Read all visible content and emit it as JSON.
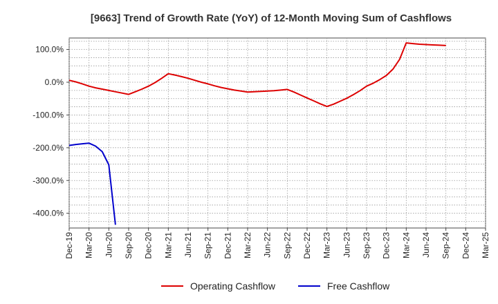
{
  "chart_data": {
    "type": "line",
    "title": "[9663]  Trend of Growth Rate (YoY) of 12-Month Moving Sum of Cashflows",
    "xlabel": "",
    "ylabel": "",
    "x_ticks": [
      "Dec-19",
      "Mar-20",
      "Jun-20",
      "Sep-20",
      "Dec-20",
      "Mar-21",
      "Jun-21",
      "Sep-21",
      "Dec-21",
      "Mar-22",
      "Jun-22",
      "Sep-22",
      "Dec-22",
      "Mar-23",
      "Jun-23",
      "Sep-23",
      "Dec-23",
      "Mar-24",
      "Jun-24",
      "Sep-24",
      "Dec-24",
      "Mar-25"
    ],
    "y_ticks": [
      100,
      0,
      -100,
      -200,
      -300,
      -400
    ],
    "y_tick_labels": [
      "100.0%",
      "0.0%",
      "-100.0%",
      "-200.0%",
      "-300.0%",
      "-400.0%"
    ],
    "ylim": [
      -445,
      135
    ],
    "grid": true,
    "legend_position": "bottom-center",
    "series": [
      {
        "name": "Operating Cashflow",
        "color": "#dd0000",
        "x": [
          "Dec-19",
          "Jan-20",
          "Feb-20",
          "Mar-20",
          "Apr-20",
          "May-20",
          "Jun-20",
          "Jul-20",
          "Aug-20",
          "Sep-20",
          "Oct-20",
          "Nov-20",
          "Dec-20",
          "Jan-21",
          "Feb-21",
          "Mar-21",
          "Apr-21",
          "May-21",
          "Jun-21",
          "Jul-21",
          "Aug-21",
          "Sep-21",
          "Oct-21",
          "Nov-21",
          "Dec-21",
          "Jan-22",
          "Feb-22",
          "Mar-22",
          "Apr-22",
          "May-22",
          "Jun-22",
          "Jul-22",
          "Aug-22",
          "Sep-22",
          "Oct-22",
          "Nov-22",
          "Dec-22",
          "Jan-23",
          "Feb-23",
          "Mar-23",
          "Apr-23",
          "May-23",
          "Jun-23",
          "Jul-23",
          "Aug-23",
          "Sep-23",
          "Oct-23",
          "Nov-23",
          "Dec-23",
          "Jan-24",
          "Feb-24",
          "Mar-24",
          "Apr-24",
          "May-24",
          "Jun-24",
          "Jul-24",
          "Aug-24",
          "Sep-24"
        ],
        "values": [
          6,
          1,
          -5,
          -12,
          -17,
          -21,
          -25,
          -29,
          -33,
          -37,
          -29,
          -21,
          -12,
          -1,
          12,
          26,
          22,
          17,
          12,
          6,
          0,
          -5,
          -11,
          -16,
          -20,
          -24,
          -27,
          -30,
          -29,
          -28,
          -27,
          -26,
          -24,
          -22,
          -30,
          -39,
          -48,
          -57,
          -66,
          -74,
          -67,
          -58,
          -49,
          -38,
          -26,
          -12,
          -3,
          8,
          21,
          40,
          70,
          120,
          118,
          116,
          115,
          114,
          113,
          112
        ]
      },
      {
        "name": "Free Cashflow",
        "color": "#0000cc",
        "x": [
          "Dec-19",
          "Jan-20",
          "Feb-20",
          "Mar-20",
          "Apr-20",
          "May-20",
          "Jun-20",
          "Jul-20"
        ],
        "values": [
          -193,
          -190,
          -188,
          -186,
          -195,
          -212,
          -252,
          -435
        ]
      }
    ]
  }
}
